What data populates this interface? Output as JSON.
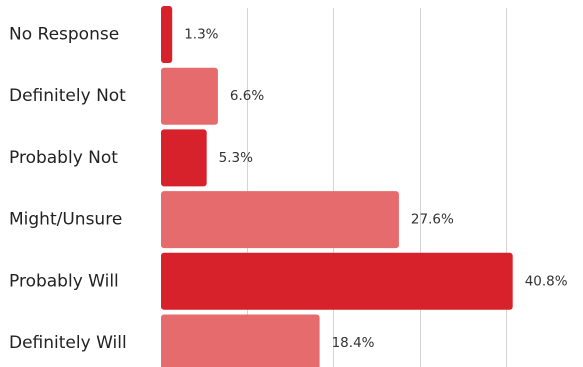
{
  "chart_data": {
    "type": "bar",
    "orientation": "horizontal",
    "categories": [
      "No Response",
      "Definitely Not",
      "Probably Not",
      "Might/Unsure",
      "Probably Will",
      "Definitely Will"
    ],
    "values": [
      1.3,
      6.6,
      5.3,
      27.6,
      40.8,
      18.4
    ],
    "value_labels": [
      "1.3%",
      "6.6%",
      "5.3%",
      "27.6%",
      "40.8%",
      "18.4%"
    ],
    "unit": "%",
    "xlim": [
      0,
      50
    ],
    "grid": true,
    "colors": [
      "#d7222b",
      "#e66b6c",
      "#d7222b",
      "#e66b6c",
      "#d7222b",
      "#e66b6c"
    ]
  }
}
